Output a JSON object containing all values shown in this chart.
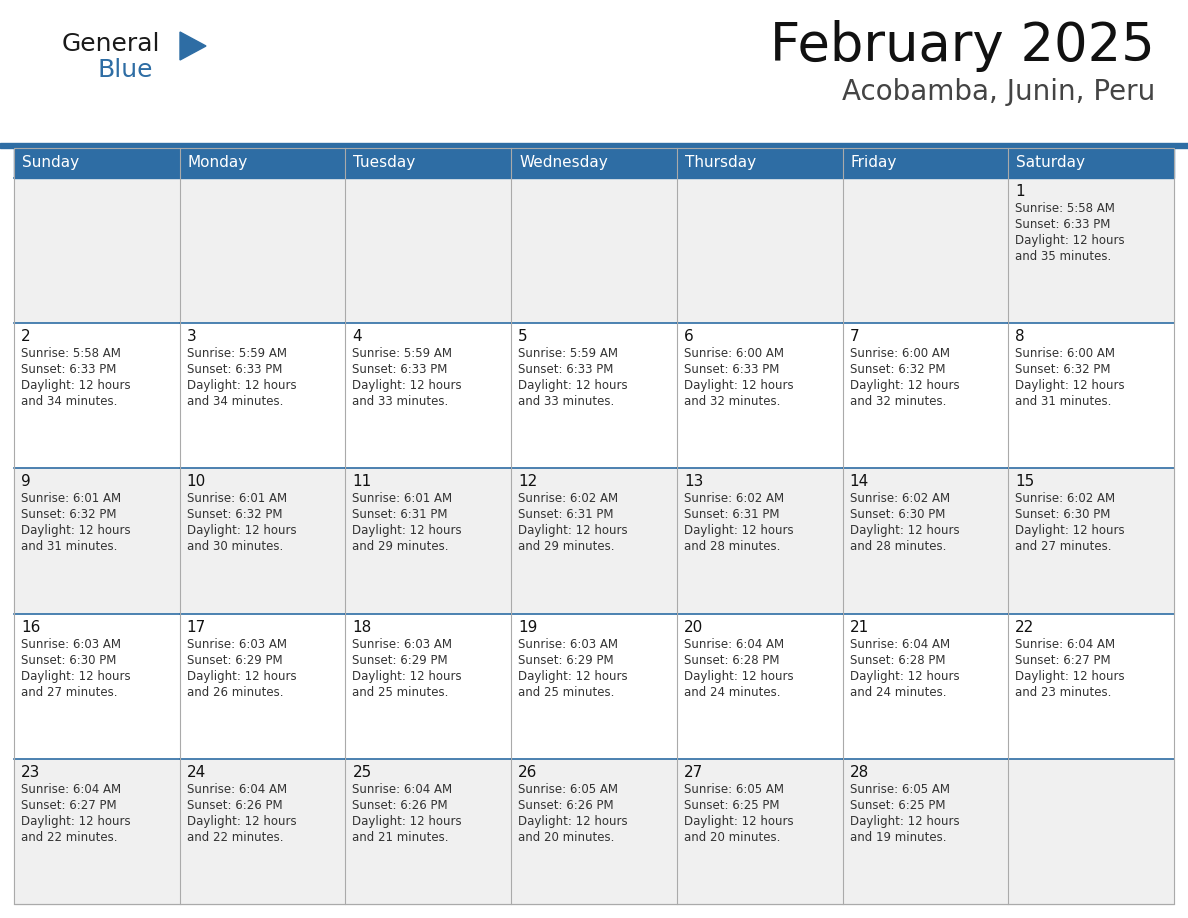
{
  "title": "February 2025",
  "subtitle": "Acobamba, Junin, Peru",
  "header_bg": "#2E6DA4",
  "header_text_color": "#FFFFFF",
  "cell_bg_light": "#F0F0F0",
  "cell_bg_white": "#FFFFFF",
  "text_color": "#333333",
  "day_number_color": "#2E6DA4",
  "border_color": "#2E6DA4",
  "days_of_week": [
    "Sunday",
    "Monday",
    "Tuesday",
    "Wednesday",
    "Thursday",
    "Friday",
    "Saturday"
  ],
  "calendar_data": [
    [
      null,
      null,
      null,
      null,
      null,
      null,
      {
        "day": 1,
        "sunrise": "5:58 AM",
        "sunset": "6:33 PM",
        "daylight_hours": 12,
        "daylight_minutes": 35
      }
    ],
    [
      {
        "day": 2,
        "sunrise": "5:58 AM",
        "sunset": "6:33 PM",
        "daylight_hours": 12,
        "daylight_minutes": 34
      },
      {
        "day": 3,
        "sunrise": "5:59 AM",
        "sunset": "6:33 PM",
        "daylight_hours": 12,
        "daylight_minutes": 34
      },
      {
        "day": 4,
        "sunrise": "5:59 AM",
        "sunset": "6:33 PM",
        "daylight_hours": 12,
        "daylight_minutes": 33
      },
      {
        "day": 5,
        "sunrise": "5:59 AM",
        "sunset": "6:33 PM",
        "daylight_hours": 12,
        "daylight_minutes": 33
      },
      {
        "day": 6,
        "sunrise": "6:00 AM",
        "sunset": "6:33 PM",
        "daylight_hours": 12,
        "daylight_minutes": 32
      },
      {
        "day": 7,
        "sunrise": "6:00 AM",
        "sunset": "6:32 PM",
        "daylight_hours": 12,
        "daylight_minutes": 32
      },
      {
        "day": 8,
        "sunrise": "6:00 AM",
        "sunset": "6:32 PM",
        "daylight_hours": 12,
        "daylight_minutes": 31
      }
    ],
    [
      {
        "day": 9,
        "sunrise": "6:01 AM",
        "sunset": "6:32 PM",
        "daylight_hours": 12,
        "daylight_minutes": 31
      },
      {
        "day": 10,
        "sunrise": "6:01 AM",
        "sunset": "6:32 PM",
        "daylight_hours": 12,
        "daylight_minutes": 30
      },
      {
        "day": 11,
        "sunrise": "6:01 AM",
        "sunset": "6:31 PM",
        "daylight_hours": 12,
        "daylight_minutes": 29
      },
      {
        "day": 12,
        "sunrise": "6:02 AM",
        "sunset": "6:31 PM",
        "daylight_hours": 12,
        "daylight_minutes": 29
      },
      {
        "day": 13,
        "sunrise": "6:02 AM",
        "sunset": "6:31 PM",
        "daylight_hours": 12,
        "daylight_minutes": 28
      },
      {
        "day": 14,
        "sunrise": "6:02 AM",
        "sunset": "6:30 PM",
        "daylight_hours": 12,
        "daylight_minutes": 28
      },
      {
        "day": 15,
        "sunrise": "6:02 AM",
        "sunset": "6:30 PM",
        "daylight_hours": 12,
        "daylight_minutes": 27
      }
    ],
    [
      {
        "day": 16,
        "sunrise": "6:03 AM",
        "sunset": "6:30 PM",
        "daylight_hours": 12,
        "daylight_minutes": 27
      },
      {
        "day": 17,
        "sunrise": "6:03 AM",
        "sunset": "6:29 PM",
        "daylight_hours": 12,
        "daylight_minutes": 26
      },
      {
        "day": 18,
        "sunrise": "6:03 AM",
        "sunset": "6:29 PM",
        "daylight_hours": 12,
        "daylight_minutes": 25
      },
      {
        "day": 19,
        "sunrise": "6:03 AM",
        "sunset": "6:29 PM",
        "daylight_hours": 12,
        "daylight_minutes": 25
      },
      {
        "day": 20,
        "sunrise": "6:04 AM",
        "sunset": "6:28 PM",
        "daylight_hours": 12,
        "daylight_minutes": 24
      },
      {
        "day": 21,
        "sunrise": "6:04 AM",
        "sunset": "6:28 PM",
        "daylight_hours": 12,
        "daylight_minutes": 24
      },
      {
        "day": 22,
        "sunrise": "6:04 AM",
        "sunset": "6:27 PM",
        "daylight_hours": 12,
        "daylight_minutes": 23
      }
    ],
    [
      {
        "day": 23,
        "sunrise": "6:04 AM",
        "sunset": "6:27 PM",
        "daylight_hours": 12,
        "daylight_minutes": 22
      },
      {
        "day": 24,
        "sunrise": "6:04 AM",
        "sunset": "6:26 PM",
        "daylight_hours": 12,
        "daylight_minutes": 22
      },
      {
        "day": 25,
        "sunrise": "6:04 AM",
        "sunset": "6:26 PM",
        "daylight_hours": 12,
        "daylight_minutes": 21
      },
      {
        "day": 26,
        "sunrise": "6:05 AM",
        "sunset": "6:26 PM",
        "daylight_hours": 12,
        "daylight_minutes": 20
      },
      {
        "day": 27,
        "sunrise": "6:05 AM",
        "sunset": "6:25 PM",
        "daylight_hours": 12,
        "daylight_minutes": 20
      },
      {
        "day": 28,
        "sunrise": "6:05 AM",
        "sunset": "6:25 PM",
        "daylight_hours": 12,
        "daylight_minutes": 19
      },
      null
    ]
  ]
}
